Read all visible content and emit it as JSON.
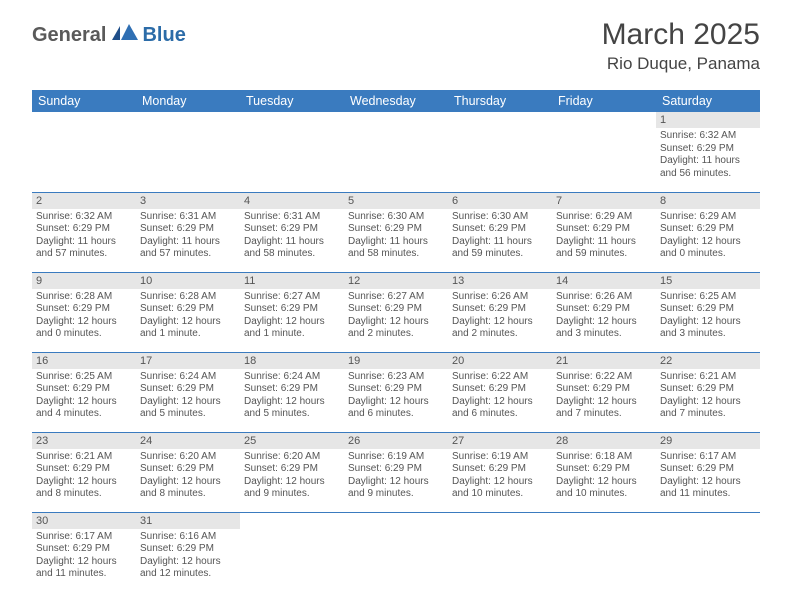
{
  "logo": {
    "general": "General",
    "blue": "Blue"
  },
  "title": {
    "month": "March 2025",
    "location": "Rio Duque, Panama"
  },
  "colors": {
    "header_bg": "#3a7bbf",
    "header_text": "#ffffff",
    "daynum_bg": "#e6e6e6",
    "border": "#3a7bbf",
    "text": "#555555"
  },
  "weekdays": [
    "Sunday",
    "Monday",
    "Tuesday",
    "Wednesday",
    "Thursday",
    "Friday",
    "Saturday"
  ],
  "weeks": [
    [
      null,
      null,
      null,
      null,
      null,
      null,
      {
        "n": "1",
        "sr": "Sunrise: 6:32 AM",
        "ss": "Sunset: 6:29 PM",
        "dl": "Daylight: 11 hours and 56 minutes."
      }
    ],
    [
      {
        "n": "2",
        "sr": "Sunrise: 6:32 AM",
        "ss": "Sunset: 6:29 PM",
        "dl": "Daylight: 11 hours and 57 minutes."
      },
      {
        "n": "3",
        "sr": "Sunrise: 6:31 AM",
        "ss": "Sunset: 6:29 PM",
        "dl": "Daylight: 11 hours and 57 minutes."
      },
      {
        "n": "4",
        "sr": "Sunrise: 6:31 AM",
        "ss": "Sunset: 6:29 PM",
        "dl": "Daylight: 11 hours and 58 minutes."
      },
      {
        "n": "5",
        "sr": "Sunrise: 6:30 AM",
        "ss": "Sunset: 6:29 PM",
        "dl": "Daylight: 11 hours and 58 minutes."
      },
      {
        "n": "6",
        "sr": "Sunrise: 6:30 AM",
        "ss": "Sunset: 6:29 PM",
        "dl": "Daylight: 11 hours and 59 minutes."
      },
      {
        "n": "7",
        "sr": "Sunrise: 6:29 AM",
        "ss": "Sunset: 6:29 PM",
        "dl": "Daylight: 11 hours and 59 minutes."
      },
      {
        "n": "8",
        "sr": "Sunrise: 6:29 AM",
        "ss": "Sunset: 6:29 PM",
        "dl": "Daylight: 12 hours and 0 minutes."
      }
    ],
    [
      {
        "n": "9",
        "sr": "Sunrise: 6:28 AM",
        "ss": "Sunset: 6:29 PM",
        "dl": "Daylight: 12 hours and 0 minutes."
      },
      {
        "n": "10",
        "sr": "Sunrise: 6:28 AM",
        "ss": "Sunset: 6:29 PM",
        "dl": "Daylight: 12 hours and 1 minute."
      },
      {
        "n": "11",
        "sr": "Sunrise: 6:27 AM",
        "ss": "Sunset: 6:29 PM",
        "dl": "Daylight: 12 hours and 1 minute."
      },
      {
        "n": "12",
        "sr": "Sunrise: 6:27 AM",
        "ss": "Sunset: 6:29 PM",
        "dl": "Daylight: 12 hours and 2 minutes."
      },
      {
        "n": "13",
        "sr": "Sunrise: 6:26 AM",
        "ss": "Sunset: 6:29 PM",
        "dl": "Daylight: 12 hours and 2 minutes."
      },
      {
        "n": "14",
        "sr": "Sunrise: 6:26 AM",
        "ss": "Sunset: 6:29 PM",
        "dl": "Daylight: 12 hours and 3 minutes."
      },
      {
        "n": "15",
        "sr": "Sunrise: 6:25 AM",
        "ss": "Sunset: 6:29 PM",
        "dl": "Daylight: 12 hours and 3 minutes."
      }
    ],
    [
      {
        "n": "16",
        "sr": "Sunrise: 6:25 AM",
        "ss": "Sunset: 6:29 PM",
        "dl": "Daylight: 12 hours and 4 minutes."
      },
      {
        "n": "17",
        "sr": "Sunrise: 6:24 AM",
        "ss": "Sunset: 6:29 PM",
        "dl": "Daylight: 12 hours and 5 minutes."
      },
      {
        "n": "18",
        "sr": "Sunrise: 6:24 AM",
        "ss": "Sunset: 6:29 PM",
        "dl": "Daylight: 12 hours and 5 minutes."
      },
      {
        "n": "19",
        "sr": "Sunrise: 6:23 AM",
        "ss": "Sunset: 6:29 PM",
        "dl": "Daylight: 12 hours and 6 minutes."
      },
      {
        "n": "20",
        "sr": "Sunrise: 6:22 AM",
        "ss": "Sunset: 6:29 PM",
        "dl": "Daylight: 12 hours and 6 minutes."
      },
      {
        "n": "21",
        "sr": "Sunrise: 6:22 AM",
        "ss": "Sunset: 6:29 PM",
        "dl": "Daylight: 12 hours and 7 minutes."
      },
      {
        "n": "22",
        "sr": "Sunrise: 6:21 AM",
        "ss": "Sunset: 6:29 PM",
        "dl": "Daylight: 12 hours and 7 minutes."
      }
    ],
    [
      {
        "n": "23",
        "sr": "Sunrise: 6:21 AM",
        "ss": "Sunset: 6:29 PM",
        "dl": "Daylight: 12 hours and 8 minutes."
      },
      {
        "n": "24",
        "sr": "Sunrise: 6:20 AM",
        "ss": "Sunset: 6:29 PM",
        "dl": "Daylight: 12 hours and 8 minutes."
      },
      {
        "n": "25",
        "sr": "Sunrise: 6:20 AM",
        "ss": "Sunset: 6:29 PM",
        "dl": "Daylight: 12 hours and 9 minutes."
      },
      {
        "n": "26",
        "sr": "Sunrise: 6:19 AM",
        "ss": "Sunset: 6:29 PM",
        "dl": "Daylight: 12 hours and 9 minutes."
      },
      {
        "n": "27",
        "sr": "Sunrise: 6:19 AM",
        "ss": "Sunset: 6:29 PM",
        "dl": "Daylight: 12 hours and 10 minutes."
      },
      {
        "n": "28",
        "sr": "Sunrise: 6:18 AM",
        "ss": "Sunset: 6:29 PM",
        "dl": "Daylight: 12 hours and 10 minutes."
      },
      {
        "n": "29",
        "sr": "Sunrise: 6:17 AM",
        "ss": "Sunset: 6:29 PM",
        "dl": "Daylight: 12 hours and 11 minutes."
      }
    ],
    [
      {
        "n": "30",
        "sr": "Sunrise: 6:17 AM",
        "ss": "Sunset: 6:29 PM",
        "dl": "Daylight: 12 hours and 11 minutes."
      },
      {
        "n": "31",
        "sr": "Sunrise: 6:16 AM",
        "ss": "Sunset: 6:29 PM",
        "dl": "Daylight: 12 hours and 12 minutes."
      },
      null,
      null,
      null,
      null,
      null
    ]
  ]
}
